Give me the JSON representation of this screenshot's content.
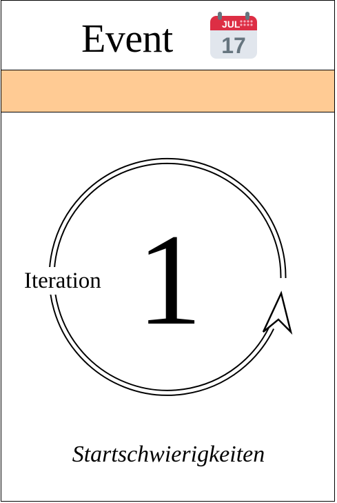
{
  "header": {
    "title": "Event",
    "icon": "calendar-icon",
    "calendar": {
      "month": "JUL",
      "day": "17"
    }
  },
  "band": {
    "color": "#ffcb94"
  },
  "cycle": {
    "label": "Iteration",
    "number": "1",
    "icon": "cycle-arrow-icon"
  },
  "subtitle": "Startschwierigkeiten"
}
